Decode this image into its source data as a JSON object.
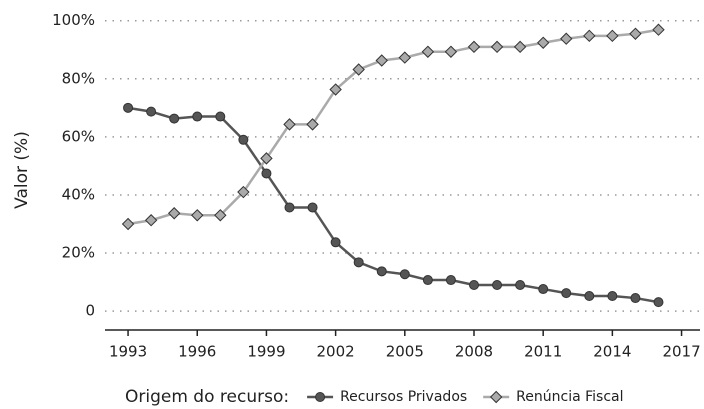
{
  "chart_data": {
    "type": "line",
    "y_label": "Valor (%)",
    "legend_title": "Origem do recurso:",
    "legend_position": "bottom",
    "grid": true,
    "x": [
      1993,
      1994,
      1995,
      1996,
      1997,
      1998,
      1999,
      2000,
      2001,
      2002,
      2003,
      2004,
      2005,
      2006,
      2007,
      2008,
      2009,
      2010,
      2011,
      2012,
      2013,
      2014,
      2015,
      2016
    ],
    "series": [
      {
        "name": "Recursos Privados",
        "color": "#555555",
        "marker": "circle",
        "values": [
          70,
          68.7,
          66.3,
          67,
          67,
          59,
          47.4,
          35.7,
          35.7,
          23.7,
          16.8,
          13.7,
          12.7,
          10.7,
          10.7,
          9,
          9,
          9,
          7.6,
          6.2,
          5.2,
          5.2,
          4.5,
          3.1
        ]
      },
      {
        "name": "Renúncia Fiscal",
        "color": "#aaaaaa",
        "marker": "diamond",
        "values": [
          30,
          31.3,
          33.7,
          33,
          33,
          41,
          52.6,
          64.3,
          64.3,
          76.3,
          83.2,
          86.3,
          87.3,
          89.3,
          89.3,
          91,
          91,
          91,
          92.4,
          93.8,
          94.8,
          94.8,
          95.5,
          96.9
        ]
      }
    ],
    "xlim": [
      1992,
      2017.8
    ],
    "xticks": [
      1993,
      1996,
      1999,
      2002,
      2005,
      2008,
      2011,
      2014,
      2017
    ],
    "ylim": [
      -6.5,
      103
    ],
    "yticks": [
      0,
      {
        "value": 20,
        "label": "20%"
      },
      {
        "value": 40,
        "label": "40%"
      },
      {
        "value": 60,
        "label": "60%"
      },
      {
        "value": 80,
        "label": "80%"
      },
      {
        "value": 100,
        "label": "100%"
      }
    ]
  }
}
